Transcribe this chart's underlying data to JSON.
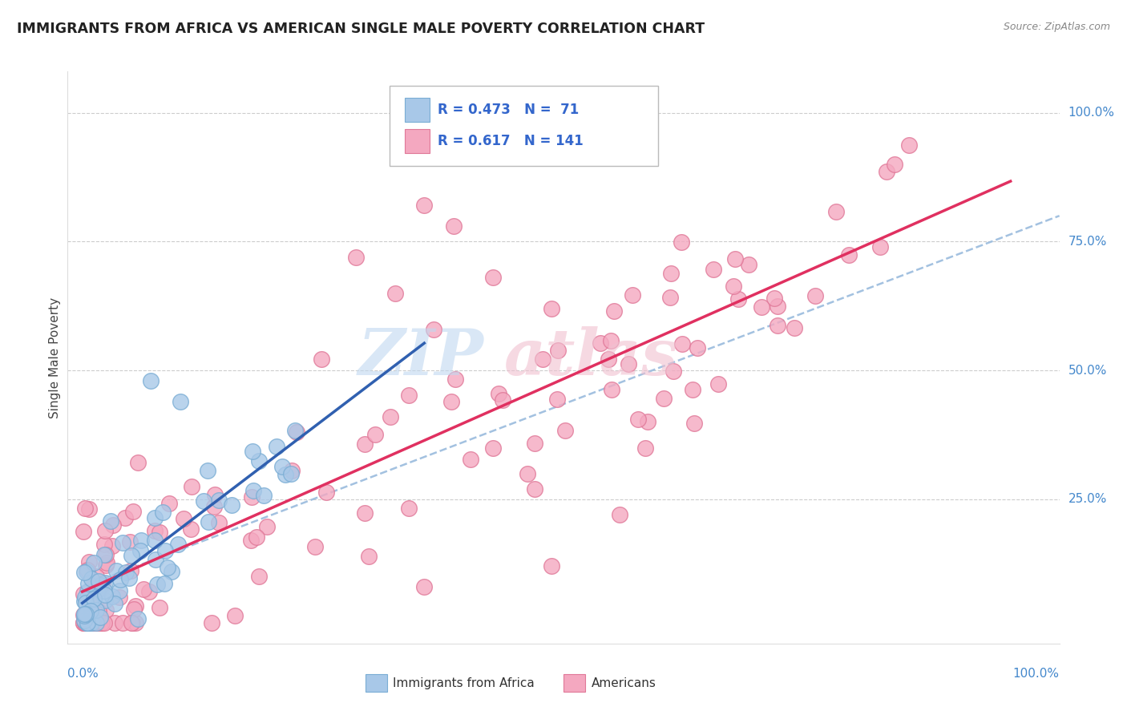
{
  "title": "IMMIGRANTS FROM AFRICA VS AMERICAN SINGLE MALE POVERTY CORRELATION CHART",
  "source": "Source: ZipAtlas.com",
  "ylabel": "Single Male Poverty",
  "blue_color": "#a8c8e8",
  "blue_edge_color": "#7aadd4",
  "pink_color": "#f4a8c0",
  "pink_edge_color": "#e07898",
  "blue_line_color": "#3060b0",
  "pink_line_color": "#e03060",
  "dash_line_color": "#99bbdd",
  "title_color": "#222222",
  "source_color": "#888888",
  "axis_label_color": "#4488cc",
  "ylabel_color": "#444444",
  "legend_border_color": "#cccccc",
  "legend_text_color": "#3366cc",
  "grid_color": "#cccccc",
  "watermark_zip_color": "#c0d8f0",
  "watermark_atlas_color": "#f0c0d0",
  "blue_seed": 42,
  "pink_seed": 99
}
